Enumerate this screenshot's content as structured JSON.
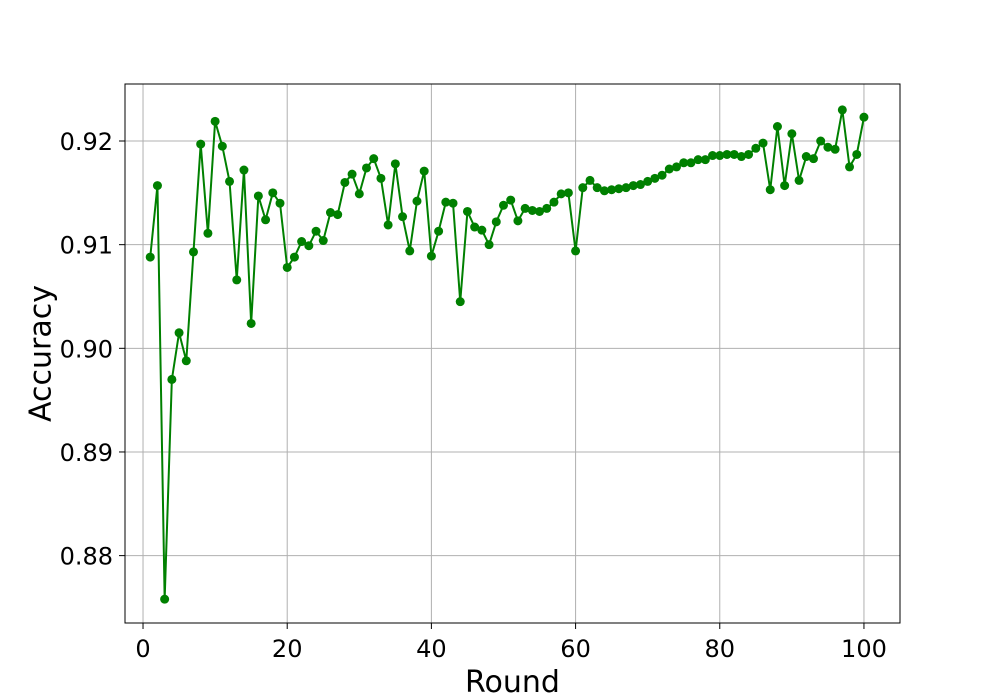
{
  "chart_data": {
    "type": "line",
    "title": "",
    "xlabel": "Round",
    "ylabel": "Accuracy",
    "xlim": [
      -2.5,
      105
    ],
    "ylim": [
      0.8735,
      0.9255
    ],
    "x_ticks": [
      0,
      20,
      40,
      60,
      80,
      100
    ],
    "y_ticks": [
      0.88,
      0.89,
      0.9,
      0.91,
      0.92
    ],
    "x_tick_labels": [
      "0",
      "20",
      "40",
      "60",
      "80",
      "100"
    ],
    "y_tick_labels": [
      "0.88",
      "0.89",
      "0.90",
      "0.91",
      "0.92"
    ],
    "grid": true,
    "legend": "none",
    "series": [
      {
        "color": "#008000",
        "marker": "circle",
        "x": [
          1,
          2,
          3,
          4,
          5,
          6,
          7,
          8,
          9,
          10,
          11,
          12,
          13,
          14,
          15,
          16,
          17,
          18,
          19,
          20,
          21,
          22,
          23,
          24,
          25,
          26,
          27,
          28,
          29,
          30,
          31,
          32,
          33,
          34,
          35,
          36,
          37,
          38,
          39,
          40,
          41,
          42,
          43,
          44,
          45,
          46,
          47,
          48,
          49,
          50,
          51,
          52,
          53,
          54,
          55,
          56,
          57,
          58,
          59,
          60,
          61,
          62,
          63,
          64,
          65,
          66,
          67,
          68,
          69,
          70,
          71,
          72,
          73,
          74,
          75,
          76,
          77,
          78,
          79,
          80,
          81,
          82,
          83,
          84,
          85,
          86,
          87,
          88,
          89,
          90,
          91,
          92,
          93,
          94,
          95,
          96,
          97,
          98,
          99,
          100
        ],
        "y": [
          0.9088,
          0.9157,
          0.8758,
          0.897,
          0.9015,
          0.8988,
          0.9093,
          0.9197,
          0.9111,
          0.9219,
          0.9195,
          0.9161,
          0.9066,
          0.9172,
          0.9024,
          0.9147,
          0.9124,
          0.915,
          0.914,
          0.9078,
          0.9088,
          0.9103,
          0.9099,
          0.9113,
          0.9104,
          0.9131,
          0.9129,
          0.916,
          0.9168,
          0.9149,
          0.9174,
          0.9183,
          0.9164,
          0.9119,
          0.9178,
          0.9127,
          0.9094,
          0.9142,
          0.9171,
          0.9089,
          0.9113,
          0.9141,
          0.914,
          0.9045,
          0.9132,
          0.9117,
          0.9114,
          0.91,
          0.9122,
          0.9138,
          0.9143,
          0.9123,
          0.9135,
          0.9133,
          0.9132,
          0.9135,
          0.9141,
          0.9149,
          0.915,
          0.9094,
          0.9155,
          0.9162,
          0.9155,
          0.9152,
          0.9153,
          0.9154,
          0.9155,
          0.9157,
          0.9158,
          0.9161,
          0.9164,
          0.9167,
          0.9173,
          0.9175,
          0.9179,
          0.9179,
          0.9182,
          0.9182,
          0.9186,
          0.9186,
          0.9187,
          0.9187,
          0.9185,
          0.9187,
          0.9193,
          0.9198,
          0.9153,
          0.9214,
          0.9157,
          0.9207,
          0.9162,
          0.9185,
          0.9183,
          0.92,
          0.9194,
          0.9192,
          0.923,
          0.9175,
          0.9187,
          0.9223
        ]
      }
    ]
  }
}
